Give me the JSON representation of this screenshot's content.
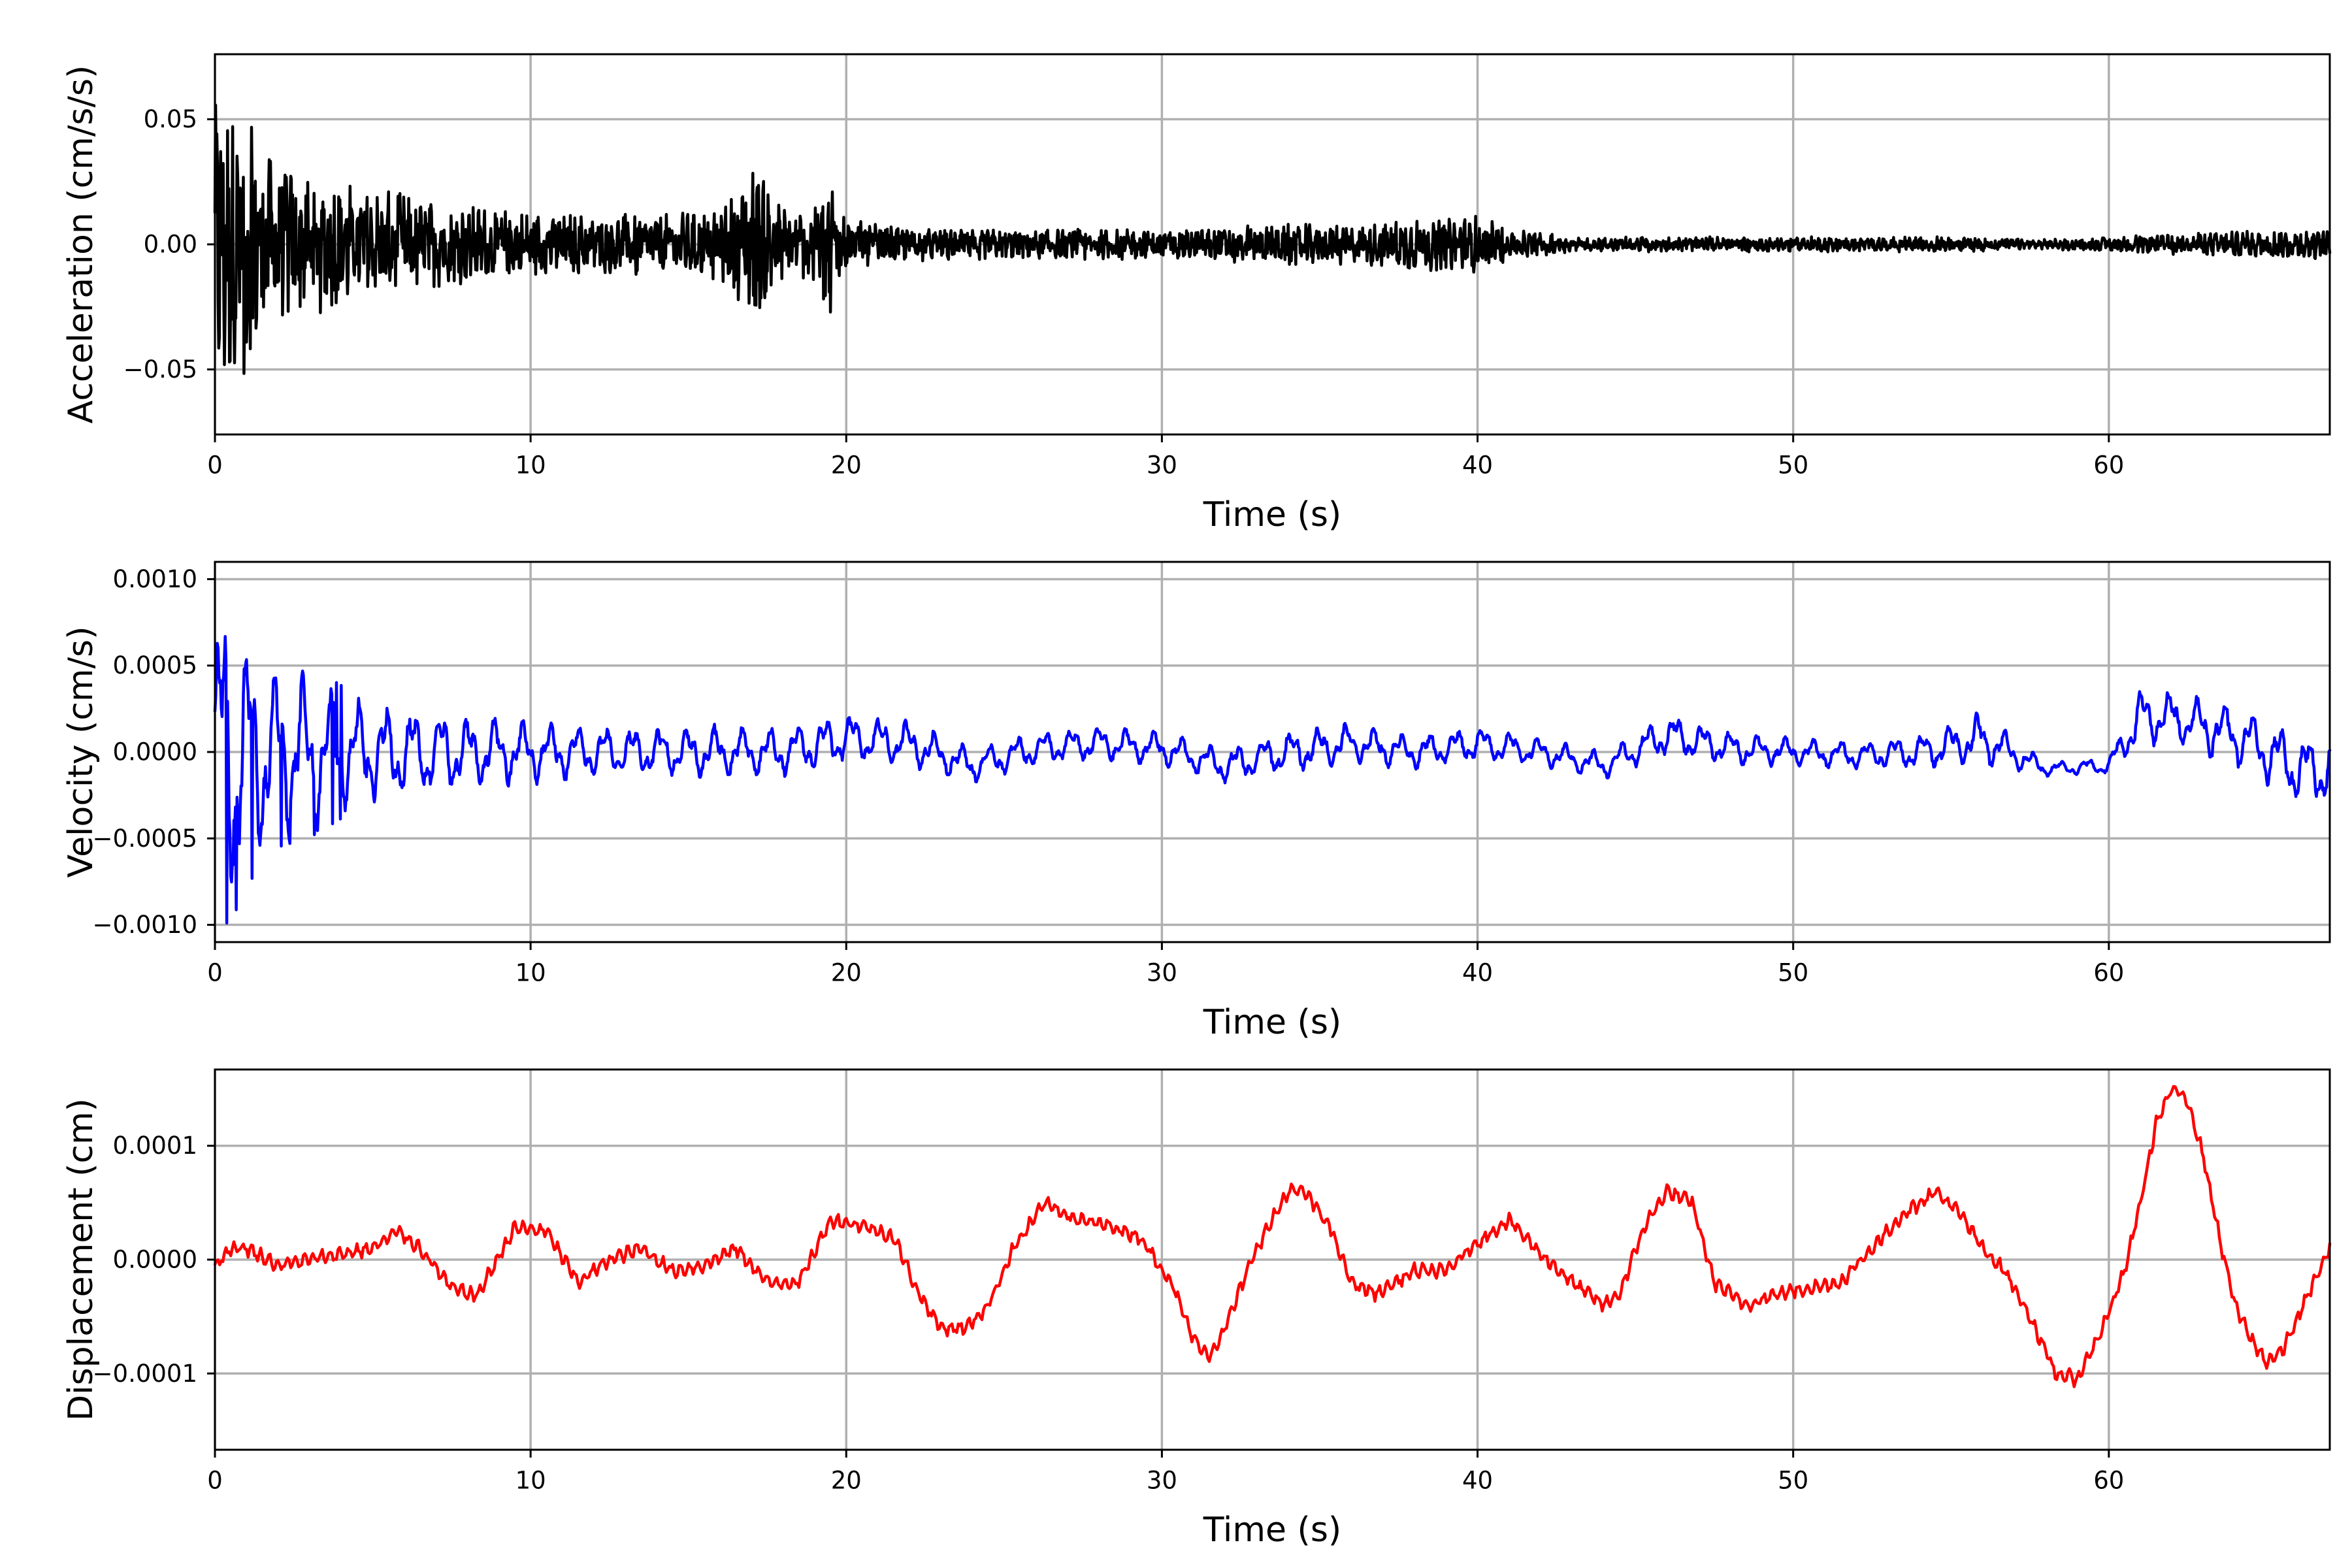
{
  "chart_data": [
    {
      "type": "line",
      "xlabel": "Time (s)",
      "ylabel": "Acceleration (cm/s/s)",
      "xlim": [
        0,
        67
      ],
      "ylim": [
        -0.076,
        0.076
      ],
      "xticks": [
        0,
        10,
        20,
        30,
        40,
        50,
        60
      ],
      "xtick_labels": [
        "0",
        "10",
        "20",
        "30",
        "40",
        "50",
        "60"
      ],
      "yticks": [
        0.05,
        0.0,
        -0.05
      ],
      "ytick_labels": [
        "0.05",
        "0.00",
        "−0.05"
      ],
      "grid": true,
      "color": "#000000",
      "series": [
        {
          "x": [
            0,
            0.3,
            0.6,
            0.9,
            1.5,
            2.0,
            3.0,
            4.0,
            5.0,
            6.0,
            8.0,
            10.0,
            12.0,
            14.0,
            16.0,
            16.5,
            17.0,
            17.5,
            18.0,
            19.0,
            19.5,
            20.0,
            21.0,
            23.0,
            25.0,
            28.0,
            30.0,
            32.0,
            34.0,
            36.0,
            38.0,
            39.0,
            40.0,
            41.0,
            43.0,
            45.0,
            48.0,
            50.0,
            53.0,
            55.0,
            58.0,
            60.0,
            62.0,
            64.0,
            66.0,
            67.0
          ],
          "amp": [
            0.055,
            0.065,
            0.05,
            0.052,
            0.04,
            0.034,
            0.028,
            0.026,
            0.022,
            0.02,
            0.016,
            0.013,
            0.012,
            0.012,
            0.014,
            0.022,
            0.033,
            0.025,
            0.015,
            0.014,
            0.028,
            0.01,
            0.008,
            0.006,
            0.006,
            0.006,
            0.006,
            0.007,
            0.008,
            0.008,
            0.011,
            0.01,
            0.012,
            0.006,
            0.003,
            0.003,
            0.003,
            0.003,
            0.003,
            0.003,
            0.002,
            0.003,
            0.004,
            0.005,
            0.006,
            0.006
          ]
        }
      ]
    },
    {
      "type": "line",
      "xlabel": "Time (s)",
      "ylabel": "Velocity (cm/s)",
      "xlim": [
        0,
        67
      ],
      "ylim": [
        -0.0011,
        0.0011
      ],
      "xticks": [
        0,
        10,
        20,
        30,
        40,
        50,
        60
      ],
      "xtick_labels": [
        "0",
        "10",
        "20",
        "30",
        "40",
        "50",
        "60"
      ],
      "yticks": [
        0.001,
        0.0005,
        0.0,
        -0.0005,
        -0.001
      ],
      "ytick_labels": [
        "0.0010",
        "0.0005",
        "0.0000",
        "−0.0005",
        "−0.0010"
      ],
      "grid": true,
      "color": "#0000ff",
      "series": [
        {
          "x": [
            0,
            0.5,
            1,
            2,
            3,
            4,
            5,
            6,
            8,
            10,
            12,
            14,
            16,
            18,
            20,
            22,
            24,
            26,
            28,
            30,
            32,
            34,
            36,
            38,
            40,
            42,
            44,
            46,
            48,
            50,
            52,
            54,
            56,
            58,
            60,
            61,
            62,
            64,
            66,
            67
          ],
          "amp": [
            0.0009,
            0.0009,
            0.0007,
            0.0005,
            0.00045,
            0.00035,
            0.0003,
            0.00028,
            0.00022,
            0.00018,
            0.00015,
            0.00015,
            0.00015,
            0.00014,
            0.00015,
            0.00013,
            0.0001,
            0.0001,
            0.0001,
            0.0001,
            0.0001,
            0.00013,
            0.00012,
            0.0001,
            0.0001,
            8e-05,
            8e-05,
            0.00012,
            0.0001,
            8e-05,
            8e-05,
            0.0001,
            0.00015,
            4e-05,
            5e-05,
            0.00018,
            0.00015,
            0.00018,
            0.0002,
            0.0002
          ],
          "offset": [
            0,
            0,
            0,
            0,
            0,
            0,
            0,
            0,
            0,
            0,
            0,
            0,
            0,
            0,
            8e-05,
            5e-05,
            -8e-05,
            2e-05,
            5e-05,
            2e-05,
            -8e-05,
            0,
            5e-05,
            0,
            5e-05,
            0,
            -8e-05,
            0.0001,
            2e-05,
            0,
            -2e-05,
            0,
            8e-05,
            -0.0001,
            -8e-05,
            0.0002,
            0.0002,
            0.0001,
            -0.0001,
            -0.0001
          ]
        }
      ]
    },
    {
      "type": "line",
      "xlabel": "Time (s)",
      "ylabel": "Displacement (cm)",
      "xlim": [
        0,
        67
      ],
      "ylim": [
        -0.000167,
        0.000167
      ],
      "xticks": [
        0,
        10,
        20,
        30,
        40,
        50,
        60
      ],
      "xtick_labels": [
        "0",
        "10",
        "20",
        "30",
        "40",
        "50",
        "60"
      ],
      "yticks": [
        0.0001,
        0.0,
        -0.0001
      ],
      "ytick_labels": [
        "0.0001",
        "0.0000",
        "−0.0001"
      ],
      "grid": true,
      "color": "#ff0000",
      "series": [
        {
          "x": [
            0,
            0.5,
            1,
            2,
            3,
            4,
            5,
            5.8,
            6.5,
            7.5,
            8.3,
            9.5,
            10.5,
            11.5,
            12.5,
            13.5,
            14.5,
            15.5,
            16.5,
            17.5,
            18.5,
            19.5,
            20.5,
            21.5,
            22.3,
            23.0,
            23.8,
            24.5,
            25.3,
            26.3,
            27.3,
            28.3,
            29.3,
            30.3,
            31.0,
            31.5,
            32.0,
            33.0,
            34.0,
            34.5,
            35.3,
            36.0,
            36.8,
            38.0,
            39.0,
            40.0,
            41.0,
            42.0,
            43.0,
            44.0,
            44.5,
            45.3,
            46.0,
            46.8,
            47.5,
            48.5,
            49.5,
            50.5,
            51.5,
            52.5,
            53.5,
            54.5,
            55.3,
            56.0,
            56.7,
            57.5,
            58.3,
            59.0,
            59.8,
            60.5,
            61.0,
            61.5,
            62.0,
            62.5,
            63.0,
            63.5,
            64.0,
            64.5,
            65.0,
            65.5,
            66.0,
            66.5,
            67.0
          ],
          "y": [
            -5e-06,
            1e-05,
            1e-05,
            -5e-06,
            0,
            5e-06,
            1e-05,
            2.5e-05,
            1e-05,
            -2.5e-05,
            -3.2e-05,
            2.8e-05,
            2.5e-05,
            -2e-05,
            0,
            1e-05,
            -1e-05,
            -5e-06,
            1e-05,
            -2e-05,
            -2e-05,
            3.5e-05,
            3e-05,
            2e-05,
            -3e-05,
            -6e-05,
            -6e-05,
            -4e-05,
            1e-05,
            5e-05,
            3.5e-05,
            3e-05,
            2e-05,
            -2e-05,
            -7e-05,
            -8.5e-05,
            -6e-05,
            1e-05,
            6e-05,
            6e-05,
            3e-05,
            -2e-05,
            -3e-05,
            -1e-05,
            -1e-05,
            1.5e-05,
            3.5e-05,
            5e-06,
            -2e-05,
            -4e-05,
            -3e-05,
            3e-05,
            6e-05,
            5e-05,
            -2e-05,
            -4e-05,
            -3e-05,
            -2.5e-05,
            -2e-05,
            1e-05,
            4e-05,
            6e-05,
            4e-05,
            1e-05,
            -1e-05,
            -5e-05,
            -0.0001,
            -0.000105,
            -6e-05,
            -1e-05,
            5e-05,
            0.00012,
            0.00015,
            0.00014,
            9e-05,
            2e-05,
            -4e-05,
            -7e-05,
            -9e-05,
            -8e-05,
            -5e-05,
            -2e-05,
            1e-05
          ]
        }
      ]
    }
  ]
}
